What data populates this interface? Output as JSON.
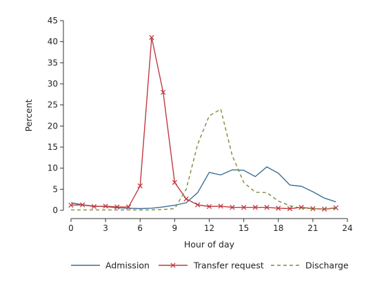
{
  "chart_data": {
    "type": "line",
    "xlabel": "Hour of day",
    "ylabel": "Percent",
    "xlim": [
      0,
      24
    ],
    "ylim": [
      0,
      45
    ],
    "xticks": [
      0,
      3,
      6,
      9,
      12,
      15,
      18,
      21,
      24
    ],
    "yticks": [
      0,
      5,
      10,
      15,
      20,
      25,
      30,
      35,
      40,
      45
    ],
    "grid": false,
    "legend": "bottom",
    "x": [
      0,
      1,
      2,
      3,
      4,
      5,
      6,
      7,
      8,
      9,
      10,
      11,
      12,
      13,
      14,
      15,
      16,
      17,
      18,
      19,
      20,
      21,
      22,
      23
    ],
    "series": [
      {
        "name": "Admission",
        "color": "#3a6e96",
        "style": "solid",
        "marker": "none",
        "values": [
          1.8,
          1.3,
          1.0,
          0.9,
          0.6,
          0.5,
          0.4,
          0.5,
          0.8,
          1.2,
          1.8,
          4.2,
          9.0,
          8.4,
          9.6,
          9.5,
          8.0,
          10.3,
          8.8,
          6.0,
          5.7,
          4.4,
          2.9,
          2.0
        ]
      },
      {
        "name": "Transfer request",
        "color": "#c0393e",
        "style": "solid",
        "marker": "x",
        "values": [
          1.2,
          1.3,
          0.9,
          1.0,
          0.8,
          0.8,
          5.8,
          41.0,
          28.0,
          6.6,
          2.7,
          1.3,
          0.9,
          1.0,
          0.7,
          0.7,
          0.7,
          0.7,
          0.5,
          0.4,
          0.7,
          0.4,
          0.3,
          0.6
        ]
      },
      {
        "name": "Discharge",
        "color": "#7a8a3a",
        "style": "dashed",
        "marker": "none",
        "values": [
          0.1,
          0.1,
          0.1,
          0.1,
          0.1,
          0.1,
          0.1,
          0.1,
          0.2,
          0.4,
          5.0,
          15.7,
          22.4,
          24.0,
          13.0,
          6.6,
          4.3,
          4.2,
          2.2,
          1.1,
          0.5,
          0.4,
          0.3,
          0.4
        ]
      }
    ]
  }
}
